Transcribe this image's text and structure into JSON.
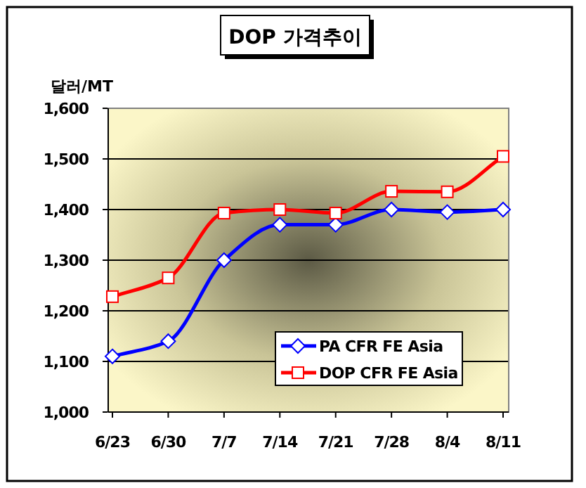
{
  "chart_data": {
    "type": "line",
    "title": "DOP 가격추이",
    "ylabel": "달러/MT",
    "categories": [
      "6/23",
      "6/30",
      "7/7",
      "7/14",
      "7/21",
      "7/28",
      "8/4",
      "8/11"
    ],
    "series": [
      {
        "name": "PA CFR FE Asia",
        "color": "#0000ff",
        "marker": "diamond",
        "values": [
          1110,
          1140,
          1300,
          1370,
          1370,
          1400,
          1395,
          1400
        ]
      },
      {
        "name": "DOP CFR FE Asia",
        "color": "#ff0000",
        "marker": "square",
        "values": [
          1228,
          1265,
          1393,
          1400,
          1393,
          1436,
          1435,
          1505
        ]
      }
    ],
    "ylim": [
      1000,
      1600
    ],
    "yticks": [
      {
        "value": 1000,
        "label": "1,000"
      },
      {
        "value": 1100,
        "label": "1,100"
      },
      {
        "value": 1200,
        "label": "1,200"
      },
      {
        "value": 1300,
        "label": "1,300"
      },
      {
        "value": 1400,
        "label": "1,400"
      },
      {
        "value": 1500,
        "label": "1,500"
      },
      {
        "value": 1600,
        "label": "1,600"
      }
    ],
    "grid": "y",
    "legend": "bottom right"
  }
}
